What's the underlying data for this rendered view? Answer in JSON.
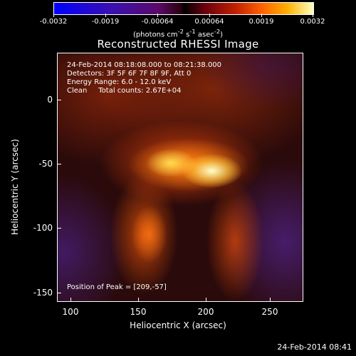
{
  "colorbar": {
    "ticks": [
      "-0.0032",
      "-0.0019",
      "-0.00064",
      "0.00064",
      "0.0019",
      "0.0032"
    ],
    "units_html": "(photons cm<sup>-2</sup> s<sup>-1</sup> asec<sup>-2</sup>)"
  },
  "plot": {
    "title": "Reconstructed RHESSI Image",
    "xlabel": "Heliocentric X (arcsec)",
    "ylabel": "Heliocentric Y (arcsec)",
    "x_ticks": [
      "100",
      "150",
      "200",
      "250"
    ],
    "y_ticks": [
      "0",
      "-50",
      "-100",
      "-150"
    ],
    "info_lines": [
      "24-Feb-2014 08:18:08.000 to 08:21:38.000",
      "Detectors: 3F 5F 6F 7F 8F 9F, Att 0",
      "Energy Range: 6.0 - 12.0 keV",
      "Clean     Total counts: 2.67E+04"
    ],
    "peak_text": "Position of Peak = [209,-57]"
  },
  "timestamp": "24-Feb-2014 08:41"
}
